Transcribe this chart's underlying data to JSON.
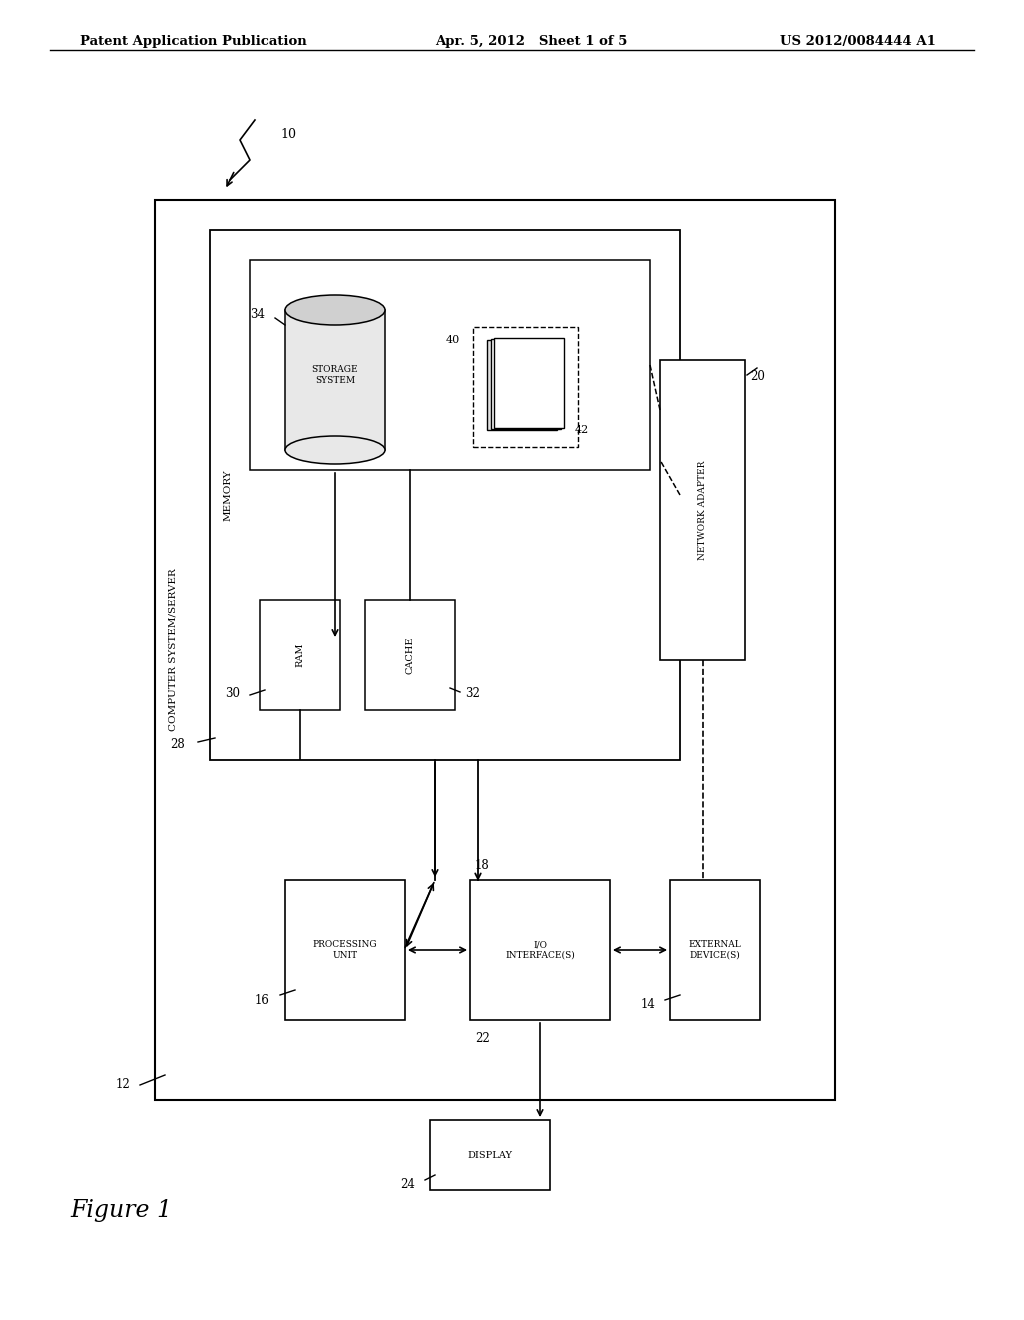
{
  "background_color": "#ffffff",
  "header_left": "Patent Application Publication",
  "header_center": "Apr. 5, 2012   Sheet 1 of 5",
  "header_right": "US 2012/0084444 A1",
  "figure_label": "Figure 1",
  "title_ref": "10",
  "outer_box_label": "12",
  "outer_box_side_label": "COMPUTER SYSTEM/SERVER",
  "memory_box_label": "28",
  "memory_box_side_label": "MEMORY",
  "storage_system_label": "34",
  "storage_system_text": "STORAGE\nSYSTEM",
  "files_label_40": "40",
  "files_label_42": "42",
  "ram_label": "30",
  "ram_text": "RAM",
  "cache_label": "32",
  "cache_text": "CACHE",
  "network_adapter_label": "20",
  "network_adapter_text": "NETWORK ADAPTER",
  "processing_unit_label": "16",
  "processing_unit_text": "PROCESSING\nUNIT",
  "io_label_18": "18",
  "io_label_22": "22",
  "io_text": "I/O\nINTERFACE(S)",
  "external_label": "14",
  "external_text": "EXTERNAL\nDEVICE(S)",
  "display_label": "24",
  "display_text": "DISPLAY"
}
